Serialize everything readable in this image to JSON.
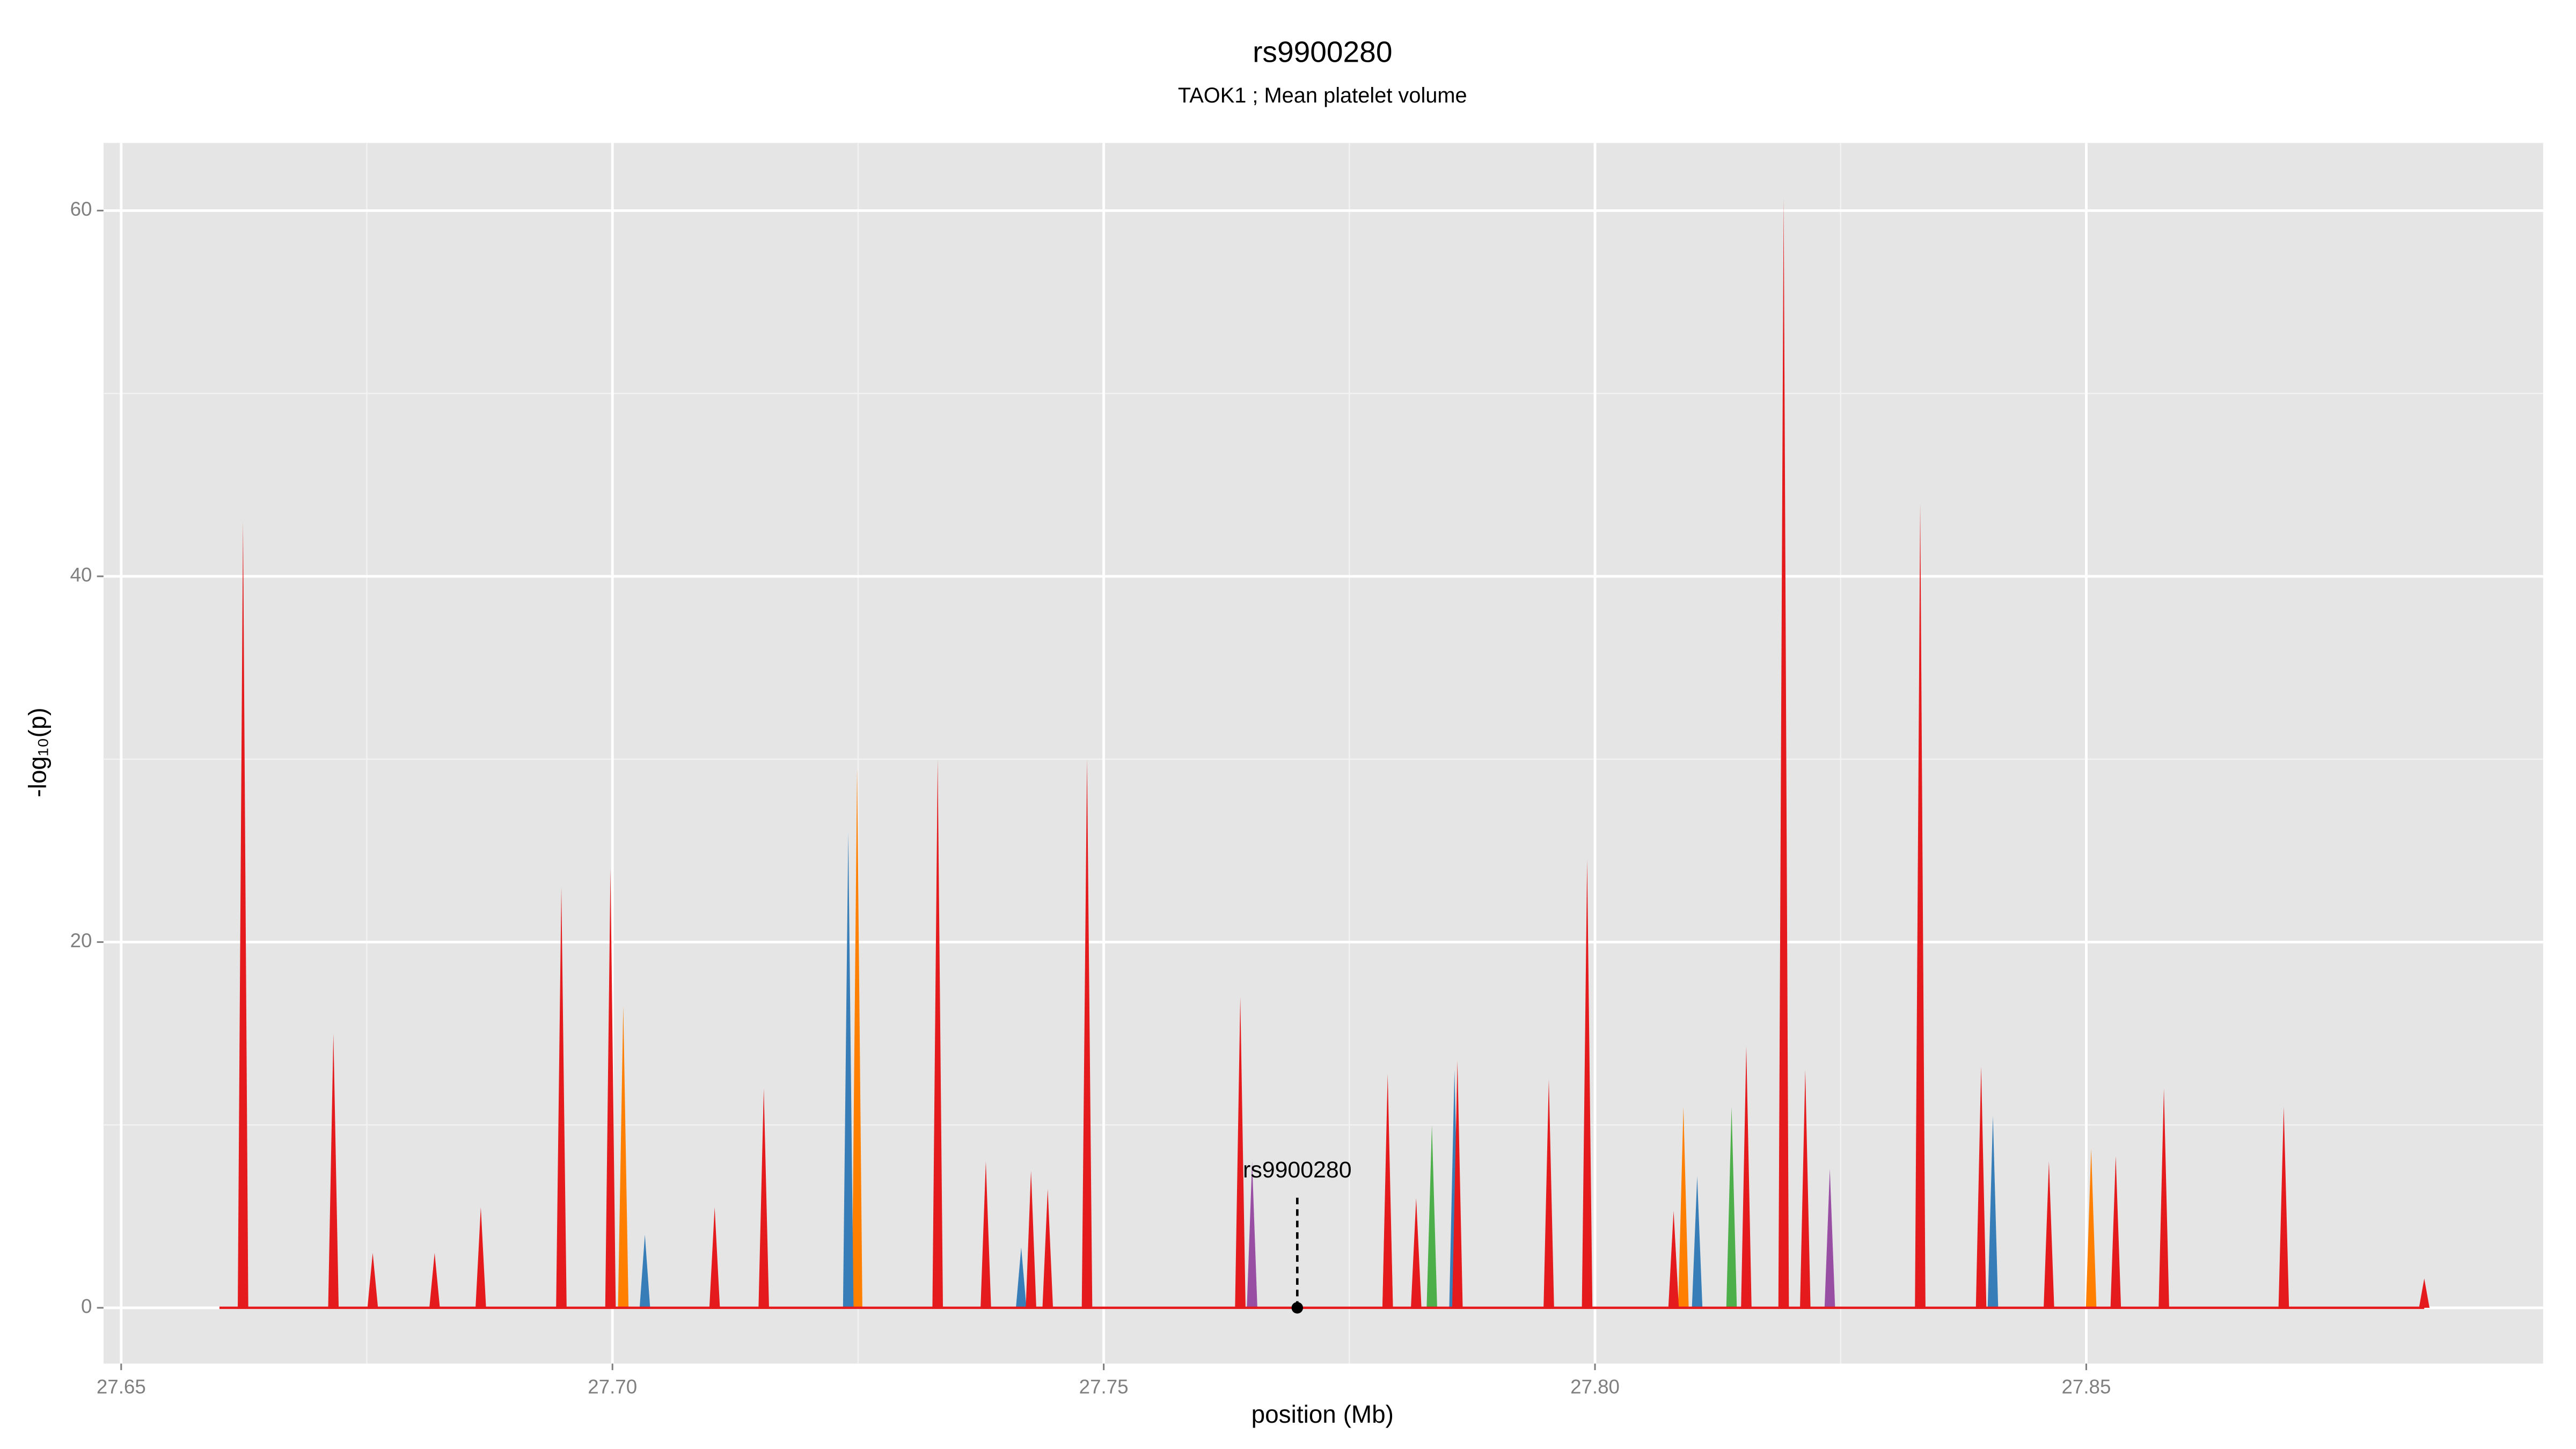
{
  "chart_data": {
    "type": "area",
    "title": "rs9900280",
    "subtitle": "TAOK1 ; Mean platelet volume",
    "x_label": "position (Mb)",
    "y_label": "-log₁₀(p)",
    "xlim": [
      27.6482,
      27.8965
    ],
    "ylim": [
      -3.05,
      63.7
    ],
    "xticks": [
      27.65,
      {
        "value": 27.7,
        "label": "27.70"
      },
      27.75,
      {
        "value": 27.8,
        "label": "27.80"
      },
      27.85
    ],
    "yticks": [
      0,
      20,
      40,
      60
    ],
    "grid": true,
    "series": [
      {
        "color": "#e41a1c",
        "x": [
          27.66,
          27.6624,
          27.6716,
          27.6756,
          27.6819,
          27.6866,
          27.6948,
          27.6998,
          27.7104,
          27.7154,
          27.7331,
          27.738,
          27.7426,
          27.7443,
          27.7483,
          27.7639,
          27.7789,
          27.7818,
          27.786,
          27.7953,
          27.7992,
          27.808,
          27.8154,
          27.8192,
          27.8214,
          27.8331,
          27.8393,
          27.8462,
          27.853,
          27.8579,
          27.8701,
          27.8844
        ],
        "values": [
          0,
          43,
          15,
          3,
          3,
          5.5,
          23,
          24,
          5.5,
          12,
          30,
          8,
          7.5,
          6.5,
          30,
          17,
          12.8,
          6,
          13.5,
          12.5,
          24.5,
          5.3,
          14.3,
          60.7,
          13,
          44,
          13.2,
          8,
          8.3,
          12,
          11,
          1.6
        ]
      },
      {
        "color": "#ff7f00",
        "x": [
          27.7011,
          27.7249,
          27.7789,
          27.809,
          27.8505
        ],
        "values": [
          16.5,
          29.5,
          12,
          11,
          8.7
        ]
      },
      {
        "color": "#377eb8",
        "x": [
          27.7033,
          27.724,
          27.7416,
          27.7857,
          27.8104,
          27.8405
        ],
        "values": [
          4,
          26,
          3.3,
          13,
          7.2,
          10.5
        ]
      },
      {
        "color": "#984ea3",
        "x": [
          27.7651,
          27.8239
        ],
        "values": [
          8,
          7.6
        ]
      },
      {
        "color": "#4daf4a",
        "x": [
          27.7834,
          27.8139
        ],
        "values": [
          10,
          11
        ]
      }
    ],
    "annotation": {
      "label": "rs9900280",
      "x": 27.7697,
      "y": 0
    }
  }
}
